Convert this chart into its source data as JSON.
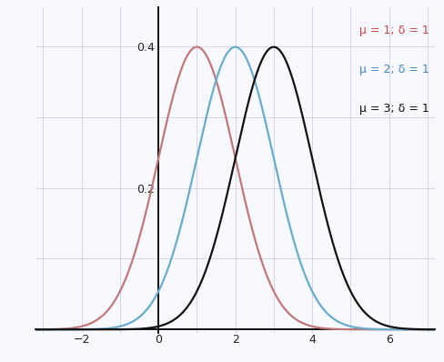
{
  "curves": [
    {
      "mu": 1,
      "sigma": 1,
      "color": "#c07878",
      "label": "μ = 1; δ = 1"
    },
    {
      "mu": 2,
      "sigma": 1,
      "color": "#6aaccc",
      "label": "μ = 2; δ = 1"
    },
    {
      "mu": 3,
      "sigma": 1,
      "color": "#111111",
      "label": "μ = 3; δ = 1"
    }
  ],
  "xmin": -3.2,
  "xmax": 7.2,
  "ymin": -0.005,
  "ymax": 0.455,
  "xticks": [
    -2,
    0,
    2,
    4,
    6
  ],
  "yticks": [
    0.2,
    0.4
  ],
  "legend_colors": [
    "#cc4444",
    "#4488bb",
    "#111111"
  ],
  "legend_labels": [
    "μ = 1; δ = 1",
    "μ = 2; δ = 1",
    "μ = 3; δ = 1"
  ],
  "grid_color": "#c8c8dc",
  "background_color": "#f8f8ff",
  "axis_color": "#111111",
  "figsize": [
    4.88,
    3.98
  ],
  "dpi": 100
}
